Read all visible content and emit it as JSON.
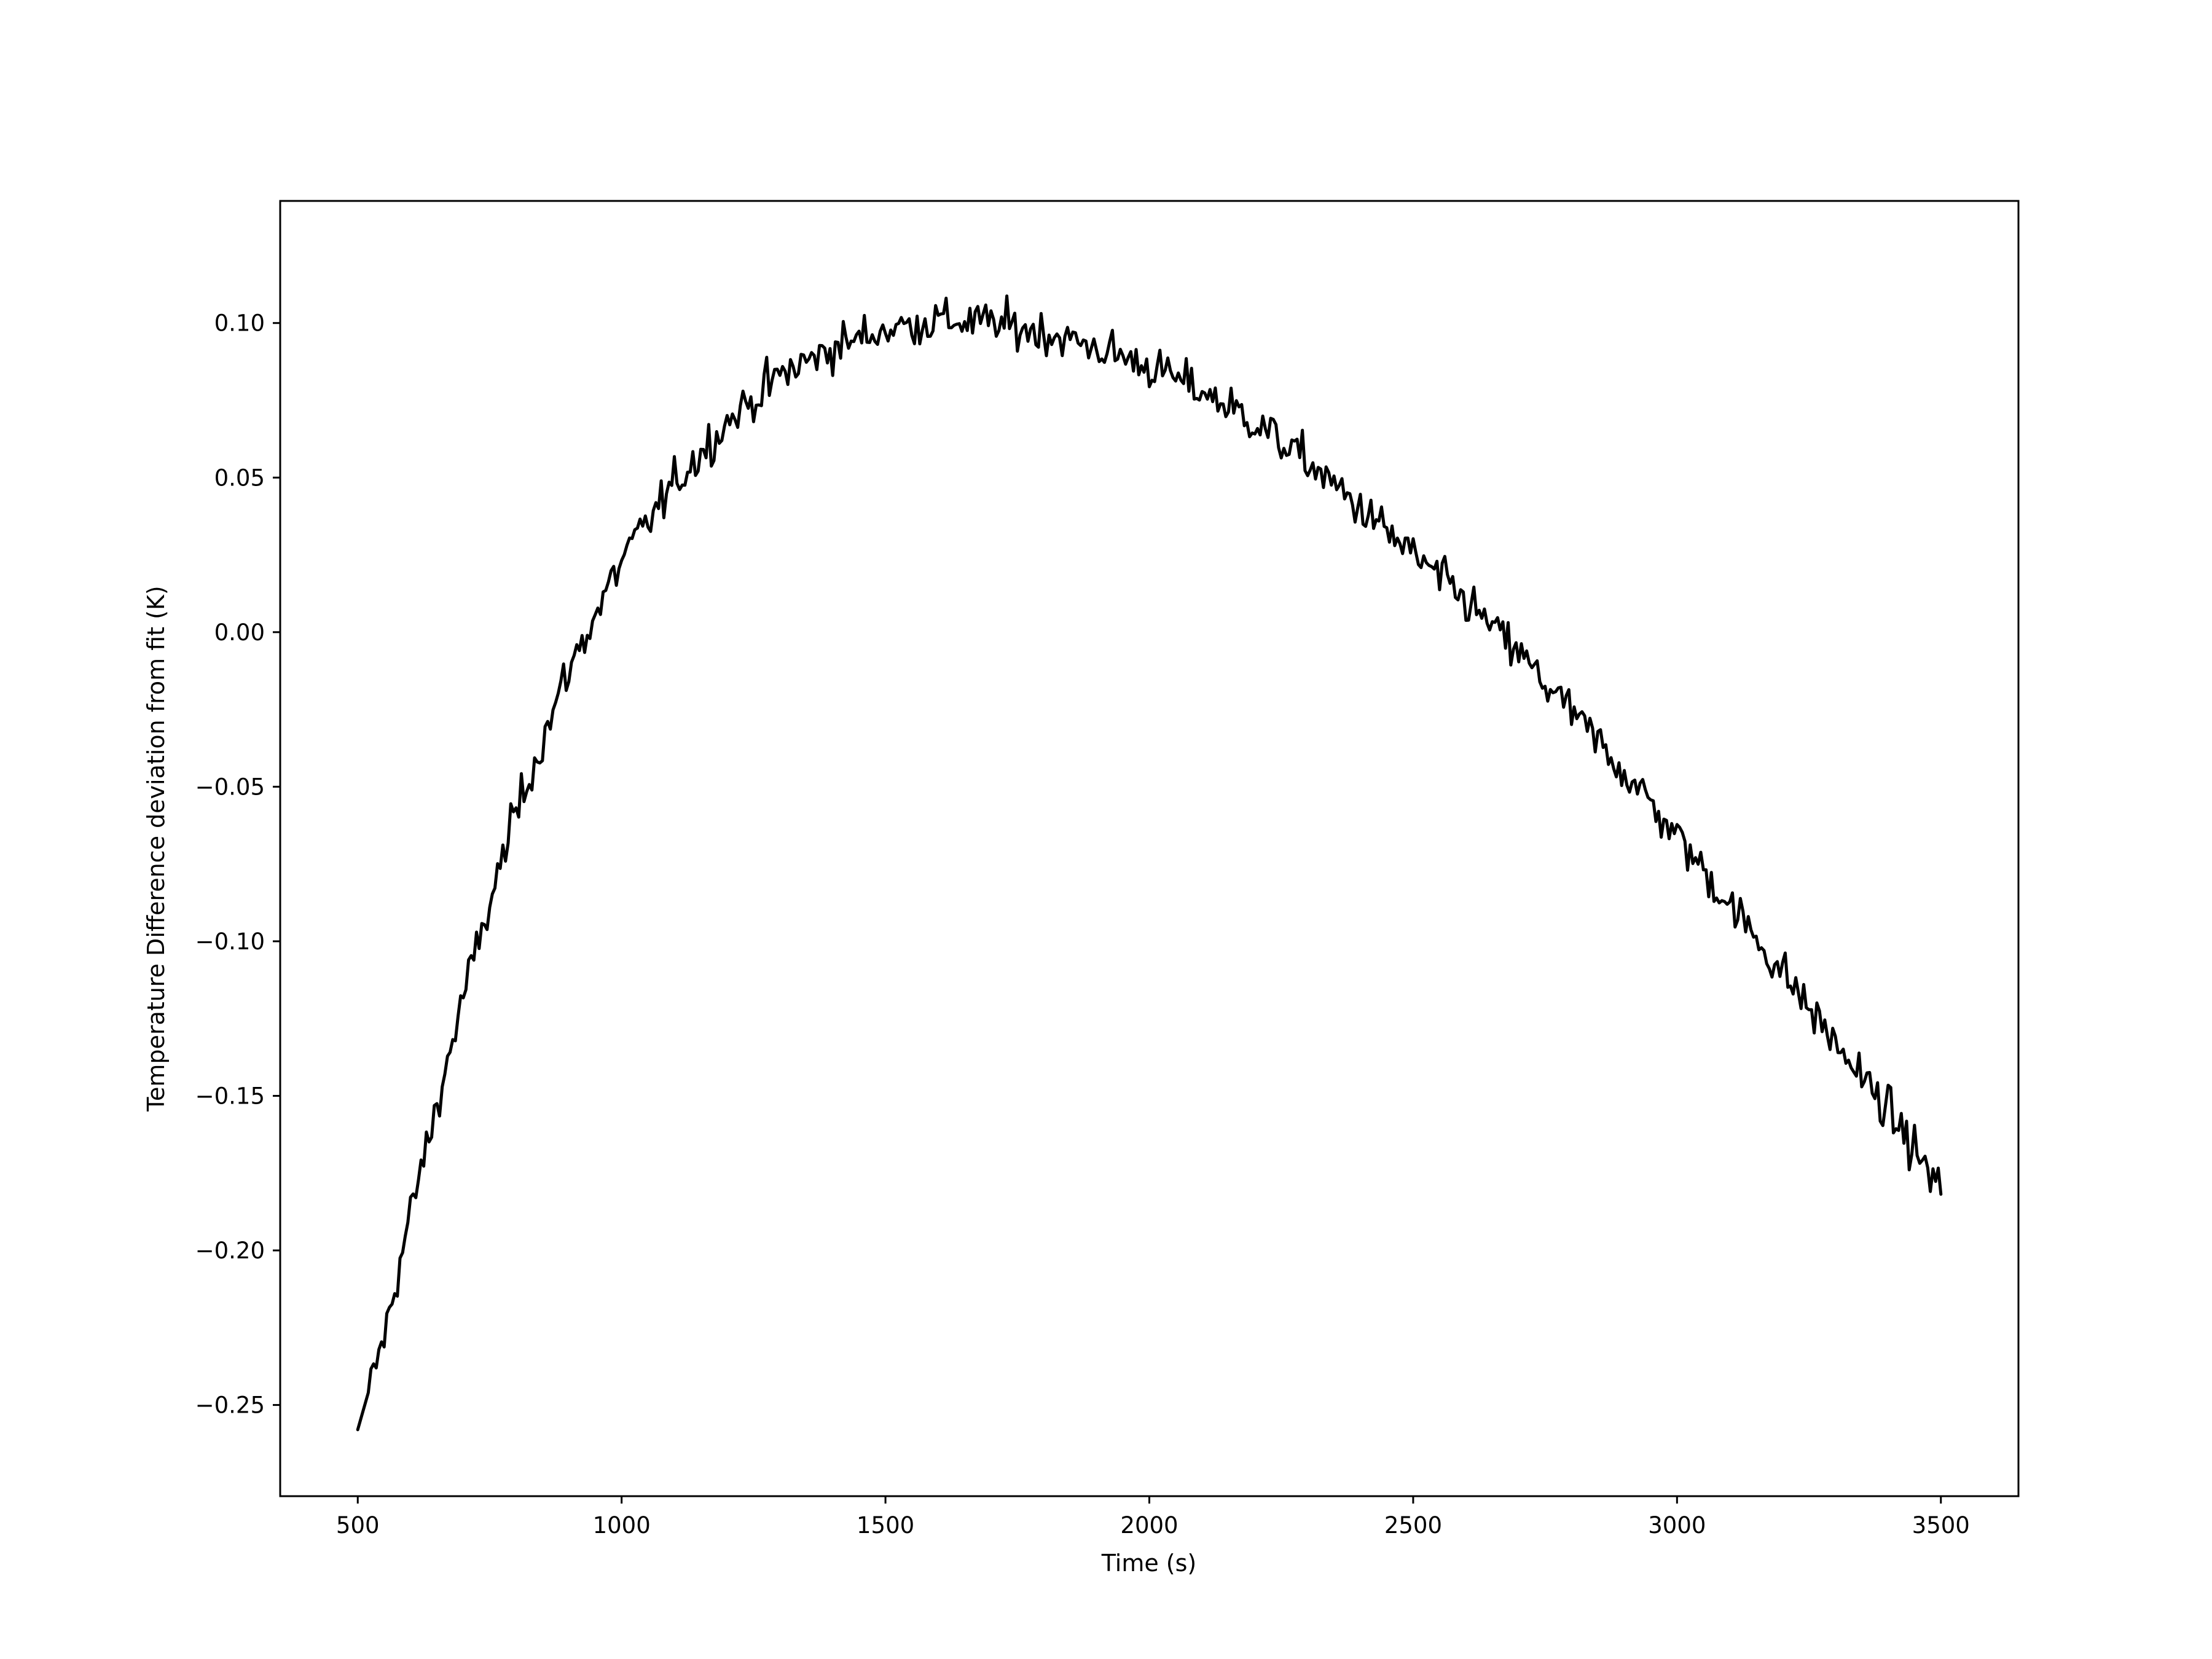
{
  "chart_data": {
    "type": "line",
    "title": "",
    "xlabel": "Time (s)",
    "ylabel": "Temperature Difference deviation from fit (K)",
    "xlim": [
      353,
      3647
    ],
    "ylim": [
      -0.2795,
      0.1395
    ],
    "xticks": [
      500,
      1000,
      1500,
      2000,
      2500,
      3000,
      3500
    ],
    "xtick_labels": [
      "500",
      "1000",
      "1500",
      "2000",
      "2500",
      "3000",
      "3500"
    ],
    "yticks": [
      -0.25,
      -0.2,
      -0.15,
      -0.1,
      -0.05,
      0.0,
      0.05,
      0.1
    ],
    "ytick_labels": [
      "−0.25",
      "−0.20",
      "−0.15",
      "−0.10",
      "−0.05",
      "0.00",
      "0.05",
      "0.10"
    ],
    "grid": false,
    "series": [
      {
        "color": "#000000",
        "trend": {
          "x": [
            500,
            550,
            600,
            700,
            800,
            900,
            1000,
            1100,
            1200,
            1300,
            1400,
            1500,
            1600,
            1700,
            1800,
            1900,
            2000,
            2100,
            2200,
            2300,
            2400,
            2500,
            2600,
            2700,
            2800,
            2900,
            3000,
            3100,
            3200,
            3300,
            3400,
            3500
          ],
          "y": [
            -0.258,
            -0.228,
            -0.188,
            -0.118,
            -0.058,
            -0.012,
            0.023,
            0.048,
            0.068,
            0.083,
            0.092,
            0.098,
            0.101,
            0.1,
            0.097,
            0.092,
            0.086,
            0.078,
            0.068,
            0.055,
            0.04,
            0.025,
            0.01,
            -0.007,
            -0.026,
            -0.045,
            -0.066,
            -0.088,
            -0.11,
            -0.133,
            -0.155,
            -0.18
          ]
        },
        "noise_amplitude": 0.009,
        "sample_step": 5
      }
    ]
  }
}
